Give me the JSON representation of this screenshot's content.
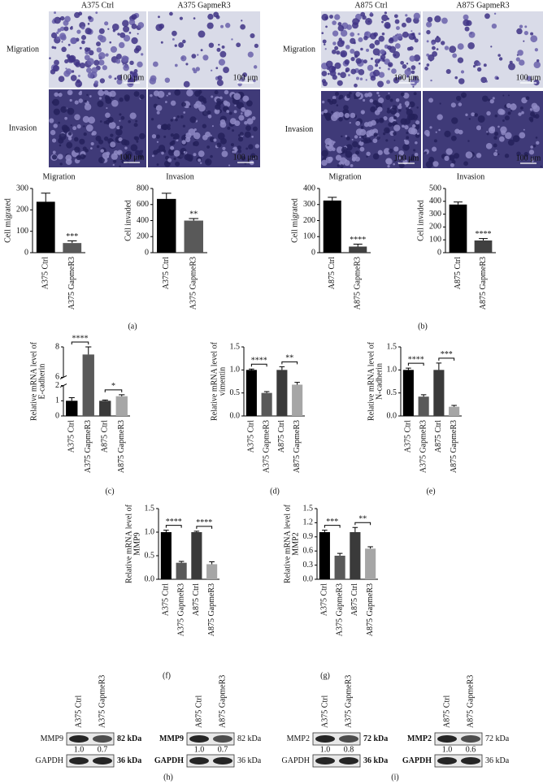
{
  "micrographs": [
    {
      "columns": [
        "A375 Ctrl",
        "A375 GapmeR3"
      ],
      "rows": [
        "Migration",
        "Invasion"
      ]
    },
    {
      "columns": [
        "A875 Ctrl",
        "A875 GapmeR3"
      ],
      "rows": [
        "Migration",
        "Invasion"
      ]
    }
  ],
  "scale_bar": "100 μm",
  "chart_data": [
    {
      "type": "bar",
      "title": "Migration",
      "ylabel": [
        "Cell migrated"
      ],
      "categories": [
        "A375 Ctrl",
        "A375 GapmeR3"
      ],
      "series": [
        {
          "values": [
            238,
            45
          ],
          "errors": [
            40,
            10
          ],
          "colors": [
            "#000000",
            "#595959"
          ]
        }
      ],
      "ylim": [
        0,
        300
      ],
      "yticks": [
        0,
        100,
        200,
        300
      ],
      "annotations": [
        {
          "text": "***",
          "bar": "A375 GapmeR3"
        }
      ]
    },
    {
      "type": "bar",
      "title": "Invasion",
      "ylabel": [
        "Cell invaded"
      ],
      "categories": [
        "A375 Ctrl",
        "A375 GapmeR3"
      ],
      "series": [
        {
          "values": [
            670,
            400
          ],
          "errors": [
            70,
            25
          ],
          "colors": [
            "#000000",
            "#595959"
          ]
        }
      ],
      "ylim": [
        0,
        800
      ],
      "yticks": [
        0,
        200,
        400,
        600,
        800
      ],
      "annotations": [
        {
          "text": "**",
          "bar": "A375 GapmeR3"
        }
      ]
    },
    {
      "type": "bar",
      "title": "Migration",
      "ylabel": [
        "Cell migrated"
      ],
      "categories": [
        "A875 Ctrl",
        "A875 GapmeR3"
      ],
      "series": [
        {
          "values": [
            325,
            38
          ],
          "errors": [
            20,
            15
          ],
          "colors": [
            "#000000",
            "#404040"
          ]
        }
      ],
      "ylim": [
        0,
        400
      ],
      "yticks": [
        0,
        100,
        200,
        300,
        400
      ],
      "annotations": [
        {
          "text": "****",
          "bar": "A875 GapmeR3"
        }
      ]
    },
    {
      "type": "bar",
      "title": "Invasion",
      "ylabel": [
        "Cell invaded"
      ],
      "categories": [
        "A875 Ctrl",
        "A875 GapmeR3"
      ],
      "series": [
        {
          "values": [
            375,
            95
          ],
          "errors": [
            20,
            15
          ],
          "colors": [
            "#000000",
            "#404040"
          ]
        }
      ],
      "ylim": [
        0,
        500
      ],
      "yticks": [
        0,
        100,
        200,
        300,
        400,
        500
      ],
      "annotations": [
        {
          "text": "****",
          "bar": "A875 GapmeR3"
        }
      ]
    },
    {
      "type": "bar",
      "ylabel": [
        "Relative mRNA level of",
        "E-cadherin"
      ],
      "categories": [
        "A375 Ctrl",
        "A375 GapmeR3",
        "A875 Ctrl",
        "A875 GapmeR3"
      ],
      "series": [
        {
          "values": [
            1.0,
            7.5,
            1.0,
            1.3
          ],
          "errors": [
            0.2,
            0.5,
            0.05,
            0.1
          ],
          "colors": [
            "#000000",
            "#595959",
            "#3a3a3a",
            "#a6a6a6"
          ]
        }
      ],
      "segments": [
        {
          "ylim": [
            0,
            2
          ],
          "yticks": [
            0,
            1,
            2
          ]
        },
        {
          "ylim": [
            6,
            8
          ],
          "yticks": [
            6,
            8
          ]
        }
      ],
      "annotations": [
        {
          "text": "****",
          "between": [
            "A375 Ctrl",
            "A375 GapmeR3"
          ]
        },
        {
          "text": "*",
          "between": [
            "A875 Ctrl",
            "A875 GapmeR3"
          ]
        }
      ]
    },
    {
      "type": "bar",
      "ylabel": [
        "Relative mRNA level of",
        "vimentin"
      ],
      "categories": [
        "A375 Ctrl",
        "A375 GapmeR3",
        "A875 Ctrl",
        "A875 GapmeR3"
      ],
      "series": [
        {
          "values": [
            1.0,
            0.5,
            1.0,
            0.68
          ],
          "errors": [
            0.02,
            0.03,
            0.07,
            0.05
          ],
          "colors": [
            "#000000",
            "#595959",
            "#3a3a3a",
            "#a6a6a6"
          ]
        }
      ],
      "ylim": [
        0,
        1.5
      ],
      "yticks": [
        {
          "value": 0,
          "label": "0.0"
        },
        0.5,
        {
          "value": 1,
          "label": "1.0"
        },
        1.5
      ],
      "annotations": [
        {
          "text": "****",
          "between": [
            "A375 Ctrl",
            "A375 GapmeR3"
          ]
        },
        {
          "text": "**",
          "between": [
            "A875 Ctrl",
            "A875 GapmeR3"
          ]
        }
      ]
    },
    {
      "type": "bar",
      "ylabel": [
        "Relative mRNA level of",
        "N-cadherin"
      ],
      "categories": [
        "A375 Ctrl",
        "A375 GapmeR3",
        "A875 Ctrl",
        "A875 GapmeR3"
      ],
      "series": [
        {
          "values": [
            1.0,
            0.42,
            1.0,
            0.2
          ],
          "errors": [
            0.04,
            0.04,
            0.15,
            0.03
          ],
          "colors": [
            "#000000",
            "#595959",
            "#3a3a3a",
            "#a6a6a6"
          ]
        }
      ],
      "ylim": [
        0,
        1.5
      ],
      "yticks": [
        {
          "value": 0,
          "label": "0.0"
        },
        0.5,
        {
          "value": 1,
          "label": "1.0"
        },
        1.5
      ],
      "annotations": [
        {
          "text": "****",
          "between": [
            "A375 Ctrl",
            "A375 GapmeR3"
          ]
        },
        {
          "text": "***",
          "between": [
            "A875 Ctrl",
            "A875 GapmeR3"
          ]
        }
      ]
    },
    {
      "type": "bar",
      "ylabel": [
        "Relative mRNA level of",
        "MMP9"
      ],
      "categories": [
        "A375 Ctrl",
        "A375 GapmeR3",
        "A875 Ctrl",
        "A875 GapmeR3"
      ],
      "series": [
        {
          "values": [
            1.0,
            0.35,
            1.0,
            0.32
          ],
          "errors": [
            0.04,
            0.03,
            0.02,
            0.05
          ],
          "colors": [
            "#000000",
            "#595959",
            "#3a3a3a",
            "#a6a6a6"
          ]
        }
      ],
      "ylim": [
        0,
        1.5
      ],
      "yticks": [
        {
          "value": 0,
          "label": "0.0"
        },
        0.5,
        {
          "value": 1,
          "label": "1.0"
        },
        1.5
      ],
      "annotations": [
        {
          "text": "****",
          "between": [
            "A375 Ctrl",
            "A375 GapmeR3"
          ]
        },
        {
          "text": "****",
          "between": [
            "A875 Ctrl",
            "A875 GapmeR3"
          ]
        }
      ]
    },
    {
      "type": "bar",
      "ylabel": [
        "Relative mRNA level of",
        "MMP2"
      ],
      "categories": [
        "A375 Ctrl",
        "A375 GapmeR3",
        "A875 Ctrl",
        "A875 GapmeR3"
      ],
      "series": [
        {
          "values": [
            1.0,
            0.5,
            1.0,
            0.65
          ],
          "errors": [
            0.04,
            0.05,
            0.1,
            0.04
          ],
          "colors": [
            "#000000",
            "#595959",
            "#3a3a3a",
            "#a6a6a6"
          ]
        }
      ],
      "ylim": [
        0,
        1.5
      ],
      "yticks": [
        {
          "value": 0,
          "label": "0.0"
        },
        0.3,
        0.6,
        0.9,
        1.2,
        1.5
      ],
      "annotations": [
        {
          "text": "***",
          "between": [
            "A375 Ctrl",
            "A375 GapmeR3"
          ]
        },
        {
          "text": "**",
          "between": [
            "A875 Ctrl",
            "A875 GapmeR3"
          ]
        }
      ]
    }
  ],
  "blots": [
    {
      "lanes": [
        "A375 Ctrl",
        "A375 GapmeR3"
      ],
      "target": "MMP9",
      "target_size": "82 kDa",
      "ratios": [
        "1.0",
        "0.7"
      ],
      "control": "GAPDH",
      "control_size": "36 kDa"
    },
    {
      "lanes": [
        "A875 Ctrl",
        "A875 GapmeR3"
      ],
      "target": "MMP9",
      "target_size": "82 kDa",
      "ratios": [
        "1.0",
        "0.7"
      ],
      "control": "GAPDH",
      "control_size": "36 kDa"
    },
    {
      "lanes": [
        "A375 Ctrl",
        "A375 GapmeR3"
      ],
      "target": "MMP2",
      "target_size": "72 kDa",
      "ratios": [
        "1.0",
        "0.8"
      ],
      "control": "GAPDH",
      "control_size": "36 kDa"
    },
    {
      "lanes": [
        "A875 Ctrl",
        "A875 GapmeR3"
      ],
      "target": "MMP2",
      "target_size": "72 kDa",
      "ratios": [
        "1.0",
        "0.6"
      ],
      "control": "GAPDH",
      "control_size": "36 kDa"
    }
  ],
  "panel_labels": [
    "(a)",
    "(b)",
    "(c)",
    "(d)",
    "(e)",
    "(f)",
    "(g)",
    "(h)",
    "(i)"
  ]
}
